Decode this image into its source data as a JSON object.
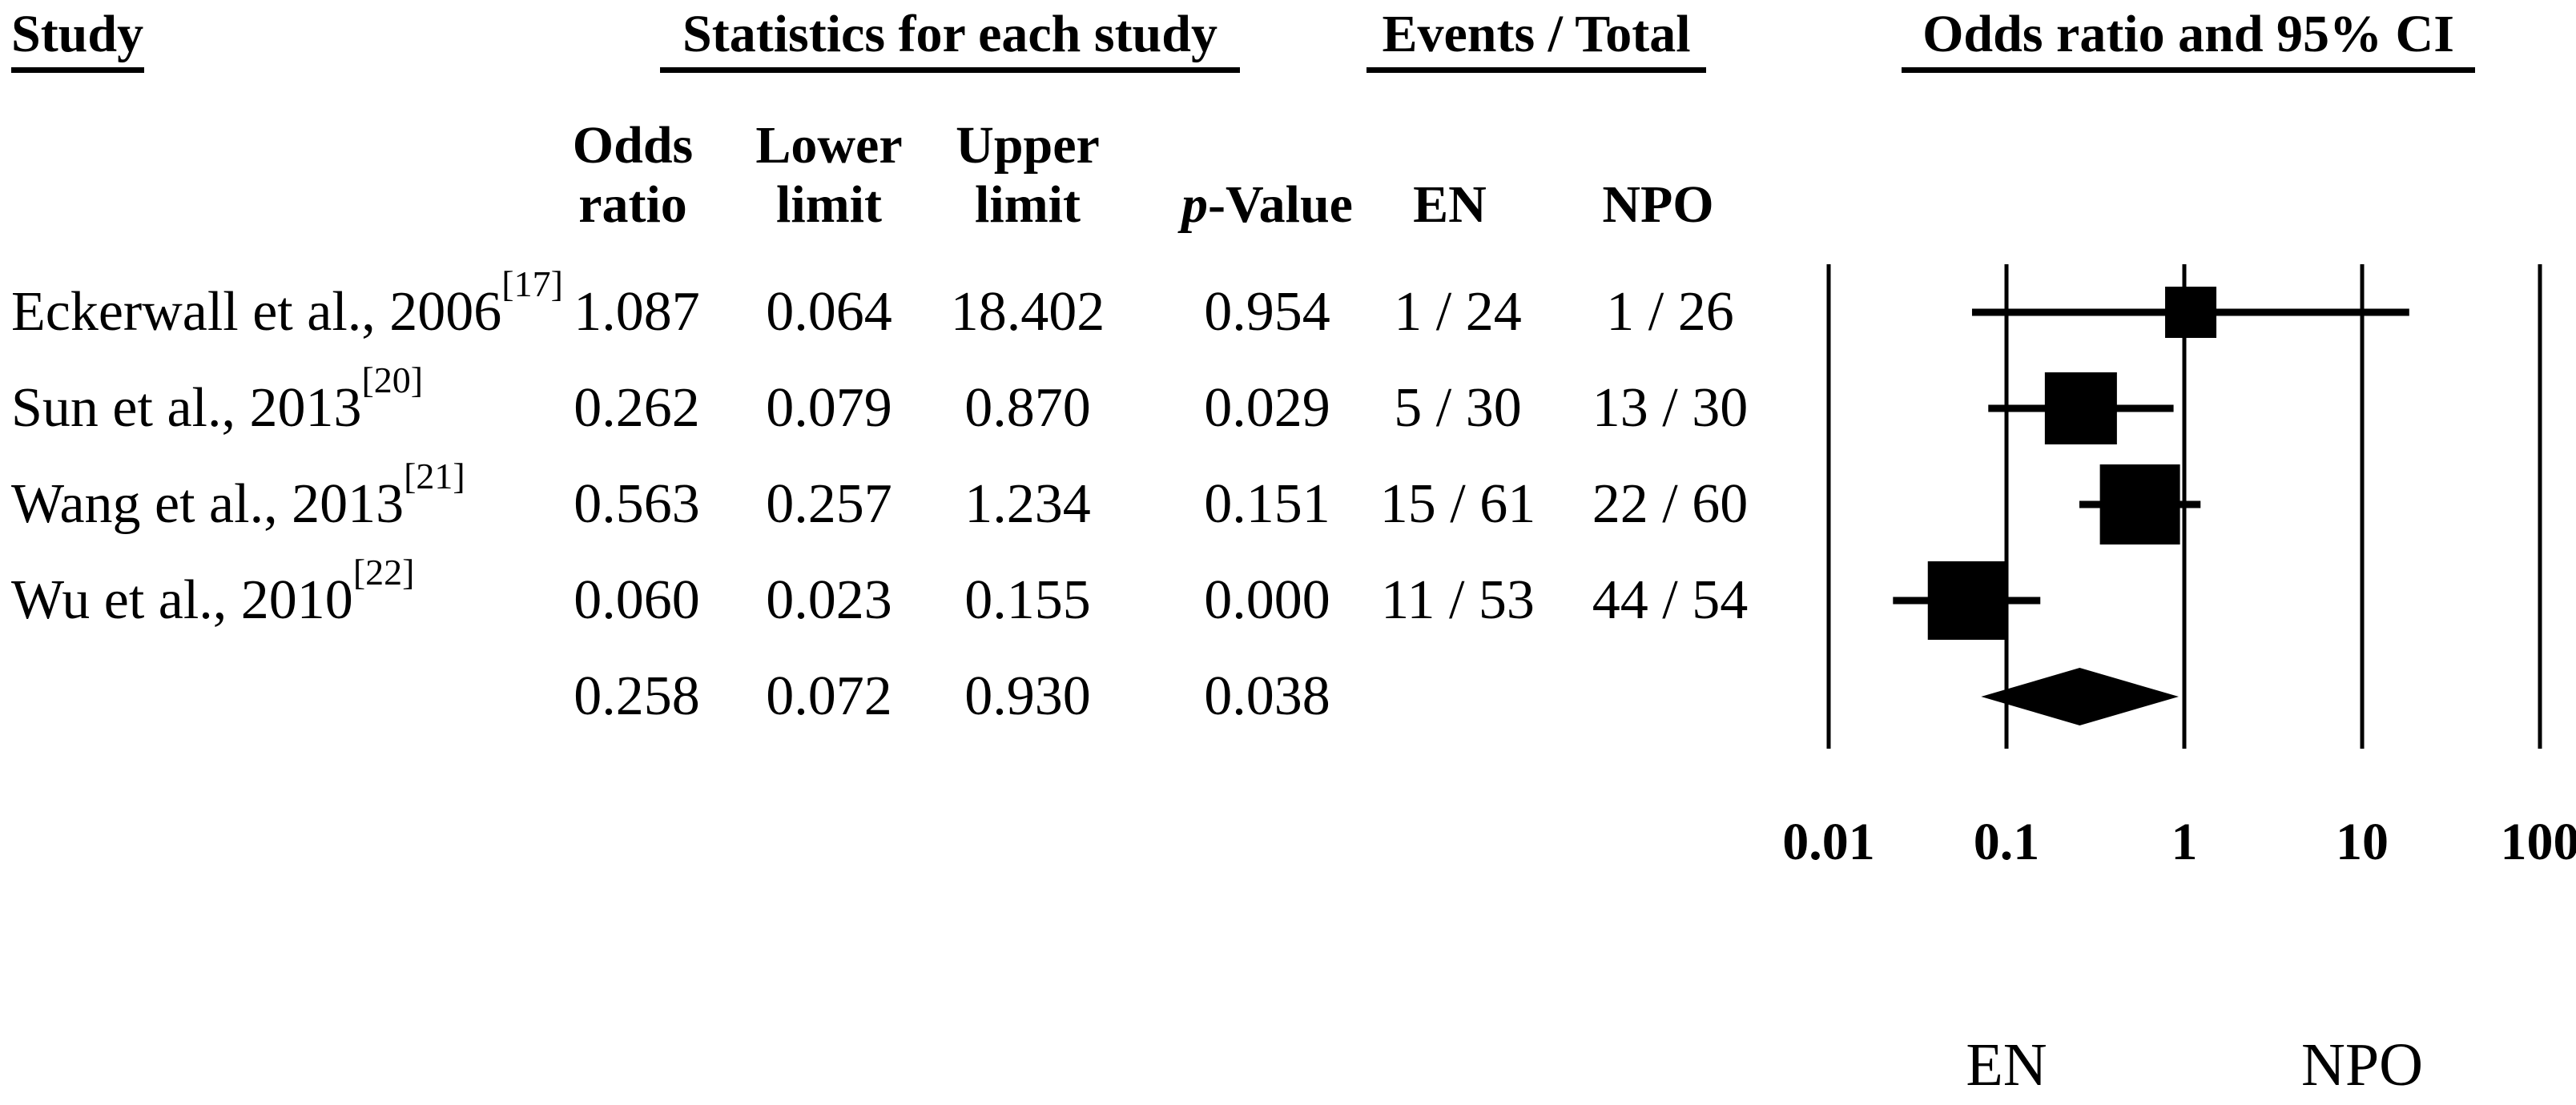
{
  "header": {
    "study": "Study",
    "stats_group": "Statistics for each study",
    "events_group": "Events / Total",
    "plot_group": "Odds ratio and 95% CI",
    "sub": {
      "odds_line1": "Odds",
      "odds_line2": "ratio",
      "lower_line1": "Lower",
      "lower_line2": "limit",
      "upper_line1": "Upper",
      "upper_line2": "limit",
      "p_italic": "p",
      "p_rest": "-Value",
      "en": "EN",
      "npo": "NPO"
    }
  },
  "table": {
    "rows": [
      {
        "study": "Eckerwall et al., 2006",
        "ref": "[17]",
        "or": "1.087",
        "lower": "0.064",
        "upper": "18.402",
        "p": "0.954",
        "en": "1 / 24",
        "npo": "1 / 26"
      },
      {
        "study": "Sun et al., 2013",
        "ref": "[20]",
        "or": "0.262",
        "lower": "0.079",
        "upper": "0.870",
        "p": "0.029",
        "en": "5 / 30",
        "npo": "13 / 30"
      },
      {
        "study": "Wang et al., 2013",
        "ref": "[21]",
        "or": "0.563",
        "lower": "0.257",
        "upper": "1.234",
        "p": "0.151",
        "en": "15 / 61",
        "npo": "22 / 60"
      },
      {
        "study": "Wu et al., 2010",
        "ref": "[22]",
        "or": "0.060",
        "lower": "0.023",
        "upper": "0.155",
        "p": "0.000",
        "en": "11 / 53",
        "npo": "44 / 54"
      }
    ],
    "summary_row": {
      "or": "0.258",
      "lower": "0.072",
      "upper": "0.930",
      "p": "0.038"
    }
  },
  "chart_data": {
    "type": "forest",
    "x_scale": "log10",
    "xlim": [
      0.01,
      100
    ],
    "axis_ticks": [
      0.01,
      0.1,
      1,
      10,
      100
    ],
    "axis_tick_labels": [
      "0.01",
      "0.1",
      "1",
      "10",
      "100"
    ],
    "grid": "vertical-lines-at-ticks",
    "marker_color": "#000000",
    "studies": [
      {
        "label": "Eckerwall et al., 2006 [17]",
        "or": 1.087,
        "ci_lower": 0.064,
        "ci_upper": 18.402,
        "p_value": 0.954,
        "en_events": "1 / 24",
        "npo_events": "1 / 26",
        "marker_size": 64
      },
      {
        "label": "Sun et al., 2013 [20]",
        "or": 0.262,
        "ci_lower": 0.079,
        "ci_upper": 0.87,
        "p_value": 0.029,
        "en_events": "5 / 30",
        "npo_events": "13 / 30",
        "marker_size": 90
      },
      {
        "label": "Wang et al., 2013 [21]",
        "or": 0.563,
        "ci_lower": 0.257,
        "ci_upper": 1.234,
        "p_value": 0.151,
        "en_events": "15 / 61",
        "npo_events": "22 / 60",
        "marker_size": 100
      },
      {
        "label": "Wu et al., 2010 [22]",
        "or": 0.06,
        "ci_lower": 0.023,
        "ci_upper": 0.155,
        "p_value": 0.0,
        "en_events": "11 / 53",
        "npo_events": "44 / 54",
        "marker_size": 98
      }
    ],
    "summary": {
      "or": 0.258,
      "ci_lower": 0.072,
      "ci_upper": 0.93,
      "p_value": 0.038
    },
    "favours_left": "EN",
    "favours_right": "NPO"
  }
}
